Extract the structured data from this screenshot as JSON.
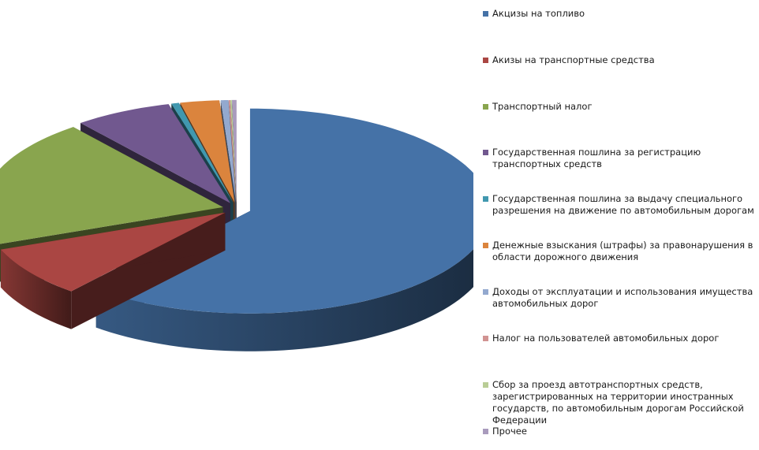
{
  "chart_data": {
    "type": "pie",
    "title": "",
    "legend_position": "right",
    "series": [
      {
        "name": "Акцизы на топливо",
        "value": 60.5,
        "color": "#4572A7"
      },
      {
        "name": "Акизы на транспортные средства",
        "value": 8.0,
        "color": "#AA4643"
      },
      {
        "name": "Транспортный налог",
        "value": 20.0,
        "color": "#89A54E"
      },
      {
        "name": "Государственная пошлина за  регистрацию транспортных средств",
        "value": 6.5,
        "color": "#71588F"
      },
      {
        "name": "Государственная пошлина за выдачу  специального разрешения на движение  по автомобильным дорогам",
        "value": 0.5,
        "color": "#4198AF"
      },
      {
        "name": "Денежные взыскания (штрафы) за правонарушения  в области дорожного движения",
        "value": 2.6,
        "color": "#DB843D"
      },
      {
        "name": "Доходы от эксплуатации и использования имущества автомобильных дорог",
        "value": 0.5,
        "color": "#93A9CF"
      },
      {
        "name": "Налог на пользователей автомобильных дорог",
        "value": 0.1,
        "color": "#D19392"
      },
      {
        "name": "Сбор за проезд автотранспортных средств, зарегистрированных на территории иностранных государств, по автомобильным дорогам Российской Федерации",
        "value": 0.1,
        "color": "#B9CD96"
      },
      {
        "name": "Прочее",
        "value": 0.3,
        "color": "#A99BBD"
      }
    ]
  }
}
